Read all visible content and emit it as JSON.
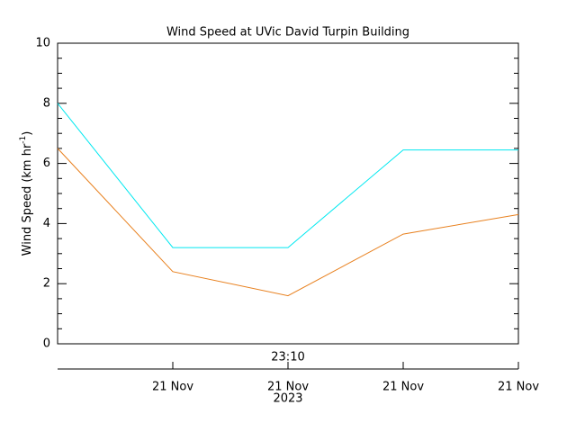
{
  "chart_data": {
    "type": "line",
    "title": "Wind Speed at UVic David Turpin Building",
    "y_label": [
      "Wind Speed (km hr",
      "-1",
      ")"
    ],
    "categories": [
      null,
      "21 Nov",
      "21 Nov",
      "21 Nov",
      "21 Nov"
    ],
    "time_labels": [
      null,
      null,
      "23:10",
      null,
      null
    ],
    "year_labels": [
      null,
      null,
      "2023",
      null,
      null
    ],
    "series": [
      {
        "color": "#00e8f0",
        "values": [
          8.0,
          3.2,
          3.2,
          6.45,
          6.45
        ]
      },
      {
        "color": "#e8801e",
        "values": [
          6.5,
          2.4,
          1.6,
          3.65,
          4.3
        ]
      }
    ],
    "ylim": [
      0,
      10
    ],
    "yticks": [
      0,
      2,
      4,
      6,
      8,
      10
    ],
    "yminorticks": [
      0.5,
      1,
      1.5,
      2.5,
      3,
      3.5,
      4.5,
      5,
      5.5,
      6.5,
      7,
      7.5,
      8.5,
      9,
      9.5
    ]
  }
}
